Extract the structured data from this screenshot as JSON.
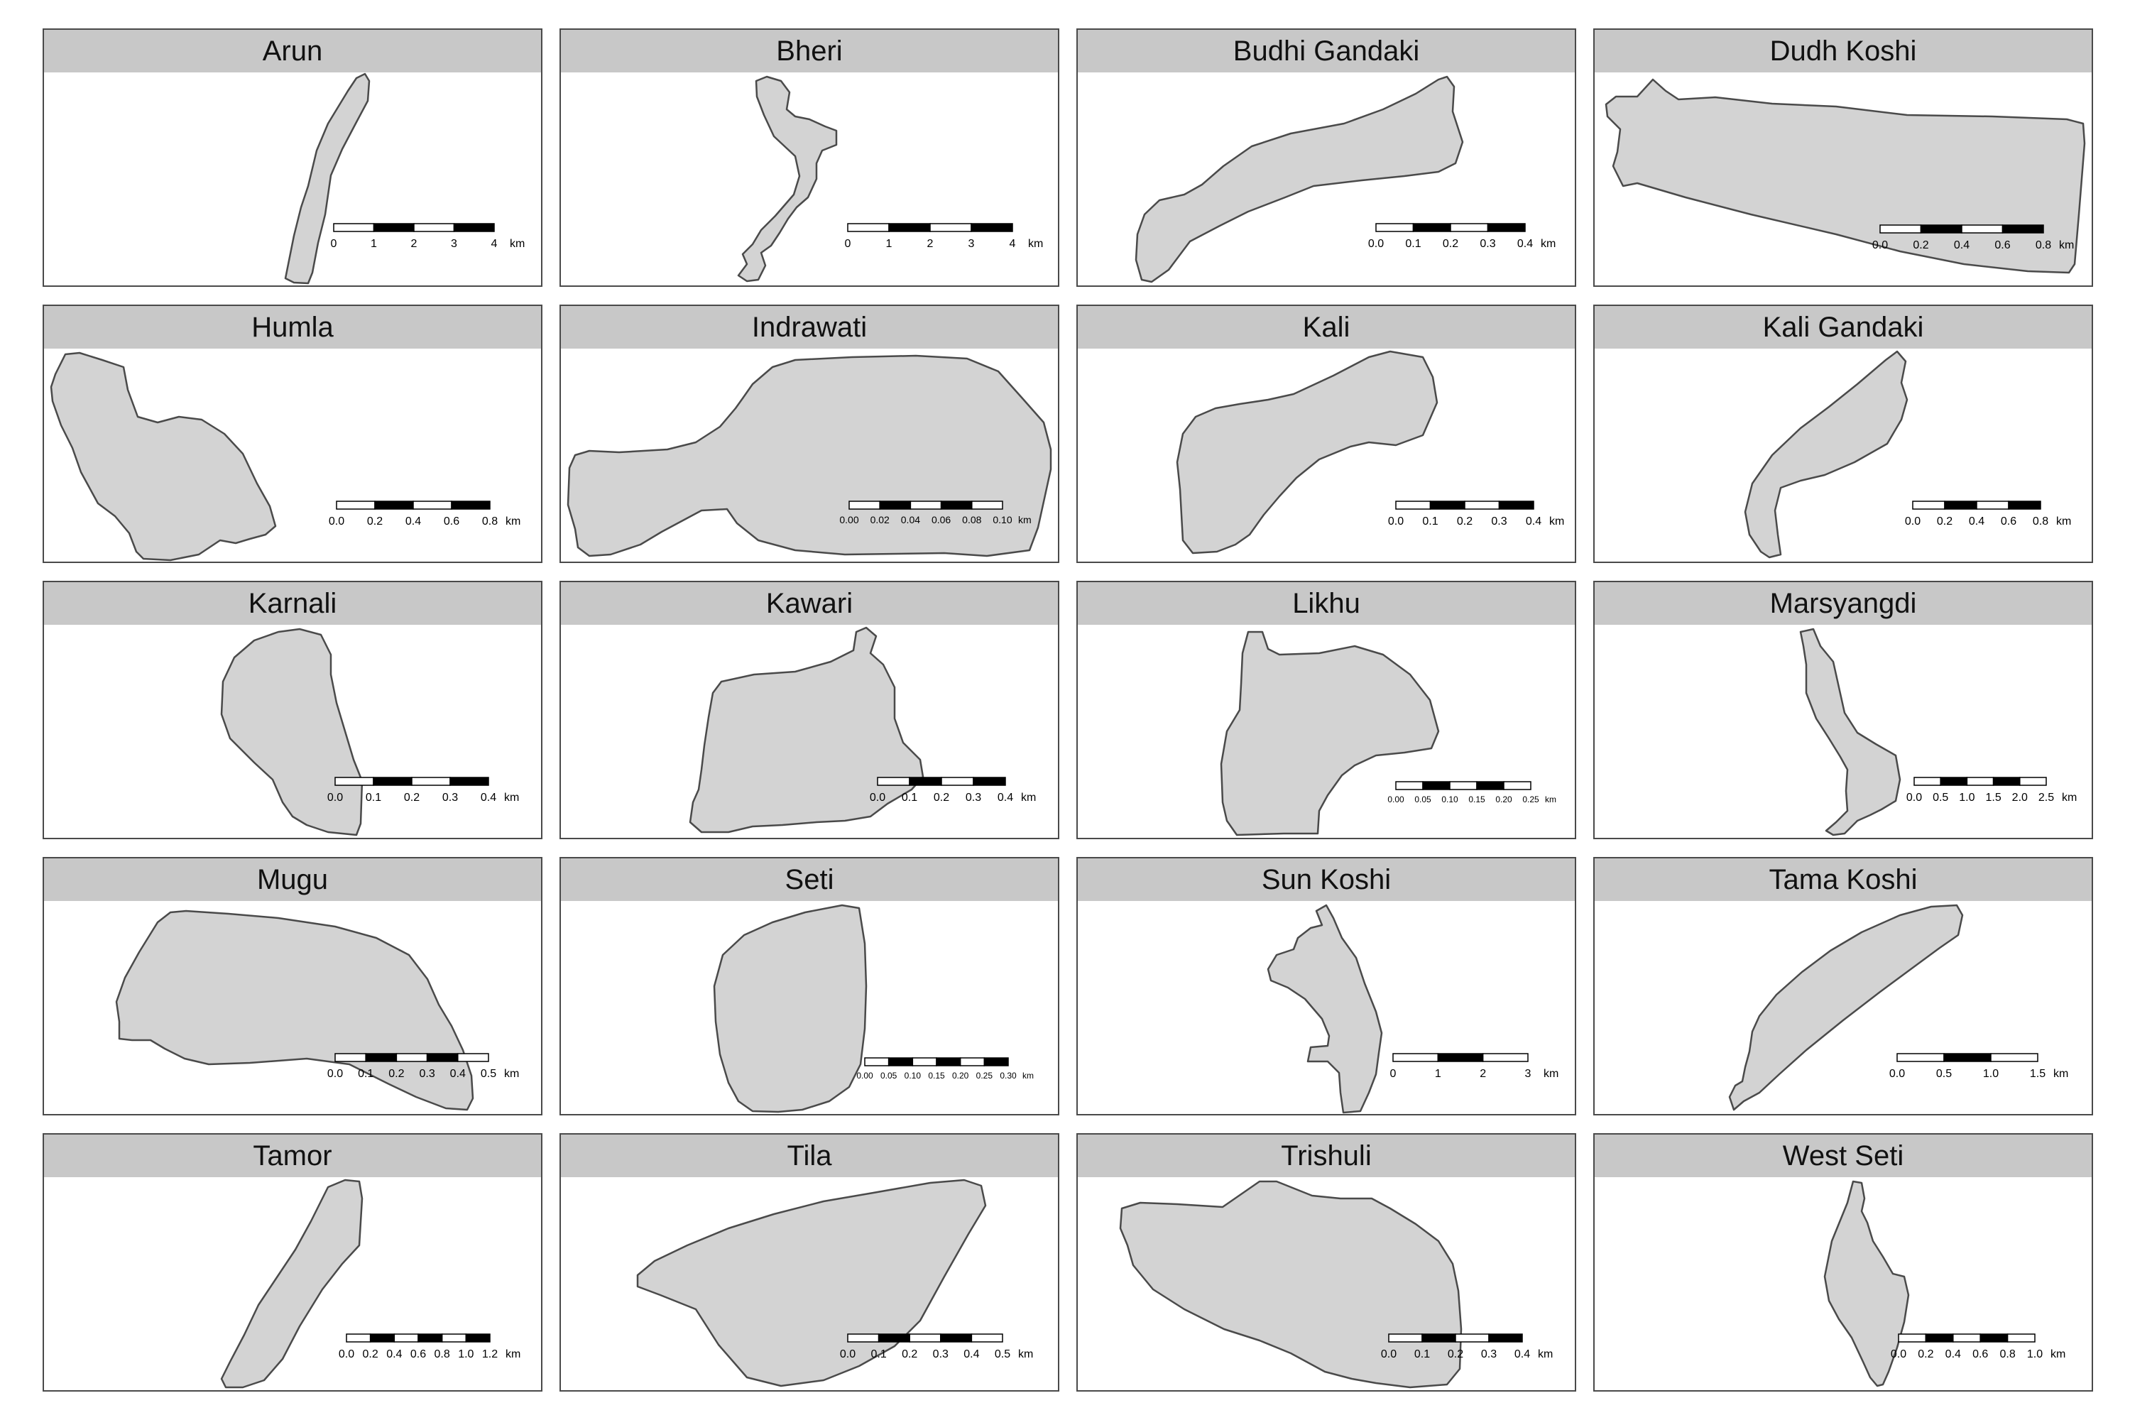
{
  "panels": [
    {
      "name": "Arun",
      "scale": {
        "ticks": [
          "0",
          "1",
          "2",
          "3",
          "4"
        ],
        "unit": "km"
      }
    },
    {
      "name": "Bheri",
      "scale": {
        "ticks": [
          "0",
          "1",
          "2",
          "3",
          "4"
        ],
        "unit": "km"
      }
    },
    {
      "name": "Budhi Gandaki",
      "scale": {
        "ticks": [
          "0.0",
          "0.1",
          "0.2",
          "0.3",
          "0.4"
        ],
        "unit": "km"
      }
    },
    {
      "name": "Dudh Koshi",
      "scale": {
        "ticks": [
          "0.0",
          "0.2",
          "0.4",
          "0.6",
          "0.8"
        ],
        "unit": "km"
      }
    },
    {
      "name": "Humla",
      "scale": {
        "ticks": [
          "0.0",
          "0.2",
          "0.4",
          "0.6",
          "0.8"
        ],
        "unit": "km"
      }
    },
    {
      "name": "Indrawati",
      "scale": {
        "ticks": [
          "0.00",
          "0.02",
          "0.04",
          "0.06",
          "0.08",
          "0.10"
        ],
        "unit": "km"
      }
    },
    {
      "name": "Kali",
      "scale": {
        "ticks": [
          "0.0",
          "0.1",
          "0.2",
          "0.3",
          "0.4"
        ],
        "unit": "km"
      }
    },
    {
      "name": "Kali Gandaki",
      "scale": {
        "ticks": [
          "0.0",
          "0.2",
          "0.4",
          "0.6",
          "0.8"
        ],
        "unit": "km"
      }
    },
    {
      "name": "Karnali",
      "scale": {
        "ticks": [
          "0.0",
          "0.1",
          "0.2",
          "0.3",
          "0.4"
        ],
        "unit": "km"
      }
    },
    {
      "name": "Kawari",
      "scale": {
        "ticks": [
          "0.0",
          "0.1",
          "0.2",
          "0.3",
          "0.4"
        ],
        "unit": "km"
      }
    },
    {
      "name": "Likhu",
      "scale": {
        "ticks": [
          "0.00",
          "0.05",
          "0.10",
          "0.15",
          "0.20",
          "0.25"
        ],
        "unit": "km"
      }
    },
    {
      "name": "Marsyangdi",
      "scale": {
        "ticks": [
          "0.0",
          "0.5",
          "1.0",
          "1.5",
          "2.0",
          "2.5"
        ],
        "unit": "km"
      }
    },
    {
      "name": "Mugu",
      "scale": {
        "ticks": [
          "0.0",
          "0.1",
          "0.2",
          "0.3",
          "0.4",
          "0.5"
        ],
        "unit": "km"
      }
    },
    {
      "name": "Seti",
      "scale": {
        "ticks": [
          "0.00",
          "0.05",
          "0.10",
          "0.15",
          "0.20",
          "0.25",
          "0.30"
        ],
        "unit": "km"
      }
    },
    {
      "name": "Sun Koshi",
      "scale": {
        "ticks": [
          "0",
          "1",
          "2",
          "3"
        ],
        "unit": "km"
      }
    },
    {
      "name": "Tama Koshi",
      "scale": {
        "ticks": [
          "0.0",
          "0.5",
          "1.0",
          "1.5"
        ],
        "unit": "km"
      }
    },
    {
      "name": "Tamor",
      "scale": {
        "ticks": [
          "0.0",
          "0.2",
          "0.4",
          "0.6",
          "0.8",
          "1.0",
          "1.2"
        ],
        "unit": "km"
      }
    },
    {
      "name": "Tila",
      "scale": {
        "ticks": [
          "0.0",
          "0.1",
          "0.2",
          "0.3",
          "0.4",
          "0.5"
        ],
        "unit": "km"
      }
    },
    {
      "name": "Trishuli",
      "scale": {
        "ticks": [
          "0.0",
          "0.1",
          "0.2",
          "0.3",
          "0.4"
        ],
        "unit": "km"
      }
    },
    {
      "name": "West Seti",
      "scale": {
        "ticks": [
          "0.0",
          "0.2",
          "0.4",
          "0.6",
          "0.8",
          "1.0"
        ],
        "unit": "km"
      }
    }
  ],
  "colors": {
    "strip_fill": "#c8c8c8",
    "lake_fill": "#d3d3d3",
    "outline": "#4a4a4a",
    "scale_dark": "#000000",
    "scale_light": "#ffffff"
  }
}
